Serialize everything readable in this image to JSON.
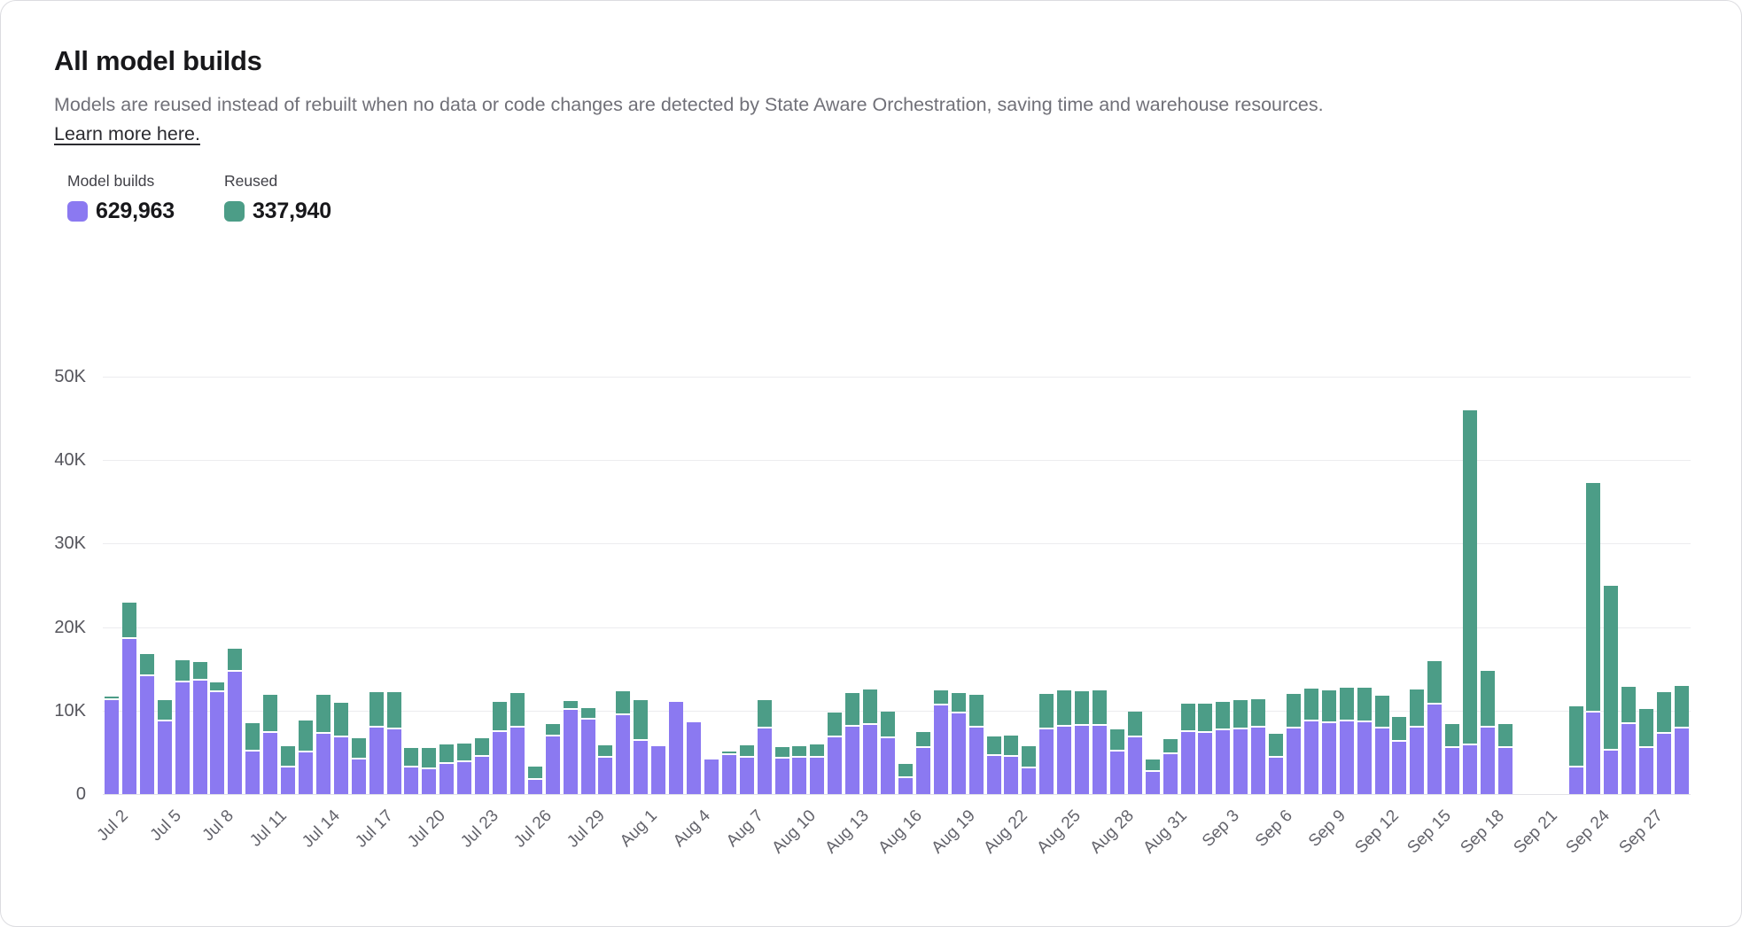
{
  "header": {
    "title": "All model builds",
    "description": "Models are reused instead of rebuilt when no data or code changes are detected by State Aware Orchestration, saving time and warehouse resources.",
    "link_label": "Learn more here."
  },
  "legend": {
    "builds": {
      "label": "Model builds",
      "value": "629,963",
      "color": "#8b79f1"
    },
    "reused": {
      "label": "Reused",
      "value": "337,940",
      "color": "#4c9d87"
    }
  },
  "chart_data": {
    "type": "bar",
    "stacked": true,
    "title": "All model builds",
    "xlabel": "",
    "ylabel": "",
    "ylim": [
      0,
      50000
    ],
    "ytick_labels": [
      "0",
      "10K",
      "20K",
      "30K",
      "40K",
      "50K"
    ],
    "xtick_every": 3,
    "grid": true,
    "legend_position": "top-left",
    "x": [
      "Jul 2",
      "Jul 3",
      "Jul 4",
      "Jul 5",
      "Jul 6",
      "Jul 7",
      "Jul 8",
      "Jul 9",
      "Jul 10",
      "Jul 11",
      "Jul 12",
      "Jul 13",
      "Jul 14",
      "Jul 15",
      "Jul 16",
      "Jul 17",
      "Jul 18",
      "Jul 19",
      "Jul 20",
      "Jul 21",
      "Jul 22",
      "Jul 23",
      "Jul 24",
      "Jul 25",
      "Jul 26",
      "Jul 27",
      "Jul 28",
      "Jul 29",
      "Jul 30",
      "Jul 31",
      "Aug 1",
      "Aug 2",
      "Aug 3",
      "Aug 4",
      "Aug 5",
      "Aug 6",
      "Aug 7",
      "Aug 8",
      "Aug 9",
      "Aug 10",
      "Aug 11",
      "Aug 12",
      "Aug 13",
      "Aug 14",
      "Aug 15",
      "Aug 16",
      "Aug 17",
      "Aug 18",
      "Aug 19",
      "Aug 20",
      "Aug 21",
      "Aug 22",
      "Aug 23",
      "Aug 24",
      "Aug 25",
      "Aug 26",
      "Aug 27",
      "Aug 28",
      "Aug 29",
      "Aug 30",
      "Aug 31",
      "Sep 1",
      "Sep 2",
      "Sep 3",
      "Sep 4",
      "Sep 5",
      "Sep 6",
      "Sep 7",
      "Sep 8",
      "Sep 9",
      "Sep 10",
      "Sep 11",
      "Sep 12",
      "Sep 13",
      "Sep 14",
      "Sep 15",
      "Sep 16",
      "Sep 17",
      "Sep 18",
      "Sep 19",
      "Sep 20",
      "Sep 21",
      "Sep 22",
      "Sep 23",
      "Sep 24",
      "Sep 25",
      "Sep 26",
      "Sep 27",
      "Sep 28",
      "Sep 29"
    ],
    "series": [
      {
        "name": "Model builds",
        "color": "#8b79f1",
        "total_label": "629,963",
        "values": [
          11300,
          18600,
          14100,
          8700,
          13400,
          13600,
          12200,
          14700,
          5100,
          7300,
          3200,
          5000,
          7200,
          6800,
          4100,
          8000,
          7800,
          3200,
          3000,
          3600,
          3800,
          4500,
          7400,
          8000,
          1700,
          6900,
          10100,
          8900,
          4300,
          9500,
          6400,
          5700,
          11000,
          8600,
          4100,
          4700,
          4300,
          7900,
          4200,
          4300,
          4300,
          6800,
          8100,
          8300,
          6700,
          1900,
          5500,
          10600,
          9700,
          8000,
          4600,
          4500,
          3100,
          7800,
          8100,
          8200,
          8200,
          5100,
          6800,
          2700,
          4800,
          7400,
          7300,
          7600,
          7800,
          8000,
          4400,
          7900,
          8700,
          8500,
          8700,
          8600,
          7900,
          6300,
          8000,
          10700,
          5500,
          5800,
          8000,
          5500,
          0,
          0,
          0,
          3200,
          9800,
          5200,
          8350,
          5550,
          7200,
          7850
        ]
      },
      {
        "name": "Reused",
        "color": "#4c9d87",
        "total_label": "337,940",
        "values": [
          300,
          4300,
          2700,
          2500,
          2600,
          2200,
          1200,
          2700,
          3400,
          4600,
          2500,
          3800,
          4700,
          4100,
          2600,
          4200,
          4400,
          2300,
          2500,
          2300,
          2200,
          2200,
          3600,
          4100,
          1600,
          1500,
          1000,
          1400,
          1500,
          2800,
          4900,
          0,
          0,
          0,
          0,
          400,
          1500,
          3400,
          1400,
          1400,
          1600,
          3000,
          4000,
          4200,
          3200,
          1700,
          1900,
          1800,
          2400,
          3900,
          2300,
          2500,
          2600,
          4200,
          4300,
          4100,
          4200,
          2600,
          3100,
          1400,
          1800,
          3400,
          3500,
          3400,
          3400,
          3400,
          2800,
          4100,
          3900,
          3900,
          4000,
          4100,
          3900,
          2900,
          4500,
          5200,
          2900,
          40200,
          6800,
          2900,
          0,
          0,
          0,
          7300,
          27500,
          19800,
          4500,
          4650,
          5000,
          5050
        ]
      }
    ]
  }
}
